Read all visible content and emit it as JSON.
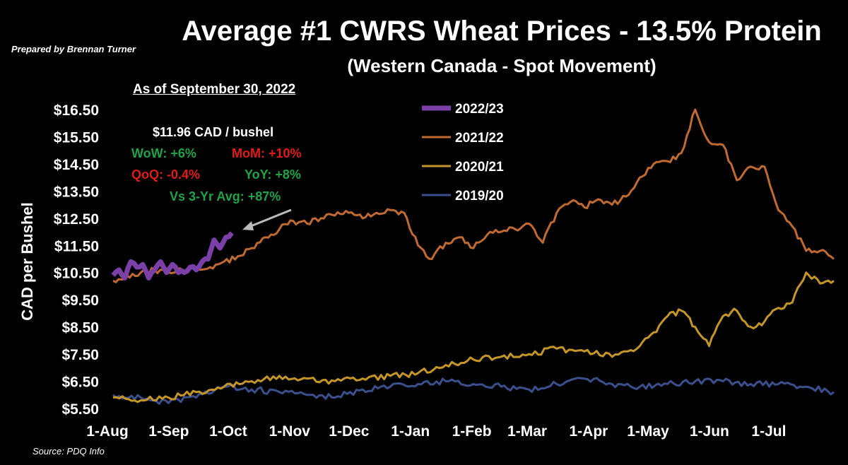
{
  "header": {
    "prepared_by": "Prepared by Brennan Turner",
    "source": "Source: PDQ Info"
  },
  "annotation": {
    "as_of": "As of September 30, 2022",
    "price": "$11.96 CAD / bushel",
    "wow": "WoW: +6%",
    "mom": "MoM: +10%",
    "qoq": "QoQ: -0.4%",
    "yoy": "YoY: +8%",
    "vs3yr": "Vs 3-Yr Avg: +87%"
  },
  "colors": {
    "s2022": "#7b3fa8",
    "s2021": "#c06a33",
    "s2020": "#c4962a",
    "s2019": "#3b4f8c",
    "green": "#1fa34a",
    "red": "#e01b1b"
  },
  "chart_data": {
    "type": "line",
    "title": "Average #1 CWRS Wheat Prices - 13.5% Protein",
    "subtitle": "(Western Canada - Spot Movement)",
    "ylabel": "CAD per Bushel",
    "xlabel": "",
    "ylim": [
      5.5,
      16.5
    ],
    "y_ticks": [
      "$5.50",
      "$6.50",
      "$7.50",
      "$8.50",
      "$9.50",
      "$10.50",
      "$11.50",
      "$12.50",
      "$13.50",
      "$14.50",
      "$15.50",
      "$16.50"
    ],
    "x_ticks": [
      "1-Aug",
      "1-Sep",
      "1-Oct",
      "1-Nov",
      "1-Dec",
      "1-Jan",
      "1-Feb",
      "1-Mar",
      "1-Apr",
      "1-May",
      "1-Jun",
      "1-Jul"
    ],
    "x_range_days": [
      0,
      364
    ],
    "x_units": "day of crop year starting 1-Aug",
    "legend_position": "top-center",
    "series": [
      {
        "name": "2022/23",
        "x": [
          0,
          3,
          6,
          9,
          12,
          15,
          18,
          21,
          24,
          27,
          30,
          33,
          36,
          39,
          42,
          45,
          48,
          51,
          54,
          57,
          60
        ],
        "y": [
          10.4,
          10.6,
          10.3,
          10.9,
          10.7,
          10.8,
          10.3,
          10.6,
          10.9,
          10.5,
          10.8,
          10.5,
          10.5,
          10.7,
          10.6,
          10.9,
          11.0,
          11.7,
          11.4,
          11.8,
          11.96
        ]
      },
      {
        "name": "2021/22",
        "x": [
          0,
          7,
          14,
          21,
          28,
          35,
          42,
          49,
          56,
          63,
          70,
          77,
          84,
          91,
          98,
          105,
          112,
          119,
          126,
          133,
          140,
          147,
          154,
          161,
          168,
          175,
          182,
          189,
          196,
          203,
          210,
          217,
          224,
          231,
          238,
          245,
          252,
          259,
          266,
          273,
          280,
          287,
          294,
          301,
          308,
          315,
          322,
          329,
          336,
          343,
          350,
          357,
          364
        ],
        "y": [
          10.2,
          10.4,
          10.5,
          10.6,
          10.5,
          10.6,
          10.6,
          10.7,
          10.9,
          11.1,
          11.4,
          11.8,
          12.1,
          12.4,
          12.3,
          12.5,
          12.6,
          12.7,
          12.5,
          12.7,
          12.8,
          12.7,
          11.5,
          11.0,
          11.6,
          11.8,
          11.4,
          11.9,
          12.0,
          12.1,
          12.3,
          11.6,
          12.7,
          13.1,
          12.9,
          13.2,
          13.0,
          13.3,
          14.0,
          14.5,
          14.6,
          14.9,
          16.5,
          15.3,
          15.2,
          13.9,
          14.4,
          14.4,
          12.8,
          12.2,
          11.3,
          11.3,
          11.0
        ]
      },
      {
        "name": "2020/21",
        "x": [
          0,
          14,
          28,
          42,
          56,
          70,
          84,
          98,
          112,
          126,
          140,
          154,
          168,
          182,
          196,
          210,
          224,
          238,
          252,
          266,
          273,
          280,
          287,
          294,
          301,
          308,
          315,
          322,
          329,
          336,
          343,
          350,
          357,
          364
        ],
        "y": [
          5.9,
          5.8,
          5.9,
          6.1,
          6.3,
          6.5,
          6.7,
          6.6,
          6.5,
          6.6,
          6.7,
          6.8,
          7.1,
          7.3,
          7.4,
          7.5,
          7.7,
          7.6,
          7.4,
          7.8,
          8.3,
          8.9,
          9.1,
          8.5,
          7.8,
          8.9,
          9.1,
          8.5,
          8.7,
          9.2,
          9.4,
          10.5,
          10.1,
          10.2
        ]
      },
      {
        "name": "2019/20",
        "x": [
          0,
          14,
          28,
          42,
          56,
          70,
          84,
          98,
          112,
          126,
          140,
          154,
          168,
          182,
          196,
          210,
          224,
          238,
          252,
          266,
          280,
          294,
          308,
          322,
          336,
          350,
          364
        ],
        "y": [
          6.0,
          5.9,
          5.7,
          5.9,
          6.3,
          6.2,
          6.1,
          6.0,
          5.9,
          6.2,
          6.3,
          6.4,
          6.5,
          6.4,
          6.3,
          6.2,
          6.4,
          6.6,
          6.4,
          6.3,
          6.4,
          6.5,
          6.5,
          6.4,
          6.4,
          6.3,
          6.1
        ]
      }
    ]
  }
}
